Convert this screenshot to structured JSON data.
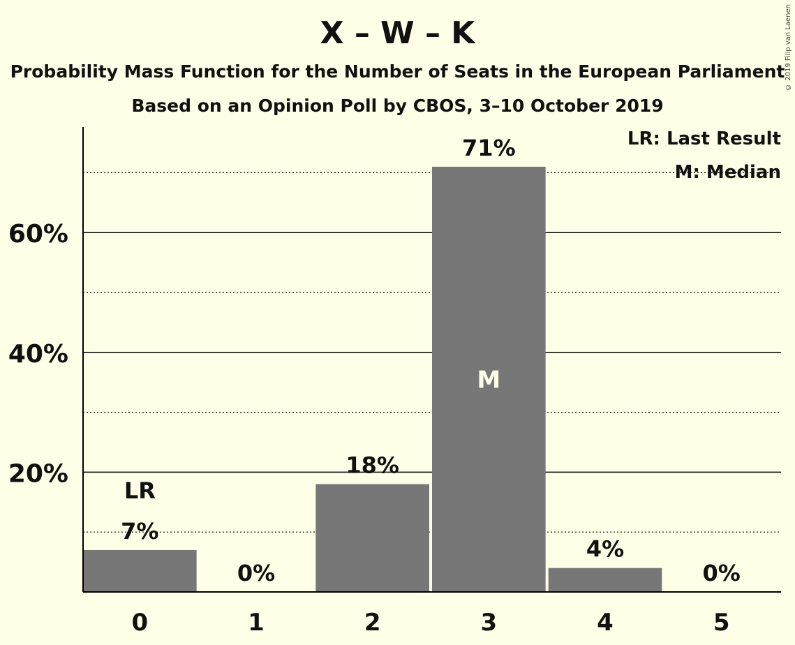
{
  "title": "X – W – K",
  "subtitle_1": "Probability Mass Function for the Number of Seats in the European Parliament",
  "subtitle_2": "Based on an Opinion Poll by CBOS, 3–10 October 2019",
  "copyright": "© 2019 Filip van Laenen",
  "legend": {
    "last_result": "LR: Last Result",
    "median": "M: Median"
  },
  "colors": {
    "background": "#FFFEE6",
    "bar": "#777777",
    "median_label": "#FFFEE6"
  },
  "chart_data": {
    "type": "bar",
    "categories": [
      "0",
      "1",
      "2",
      "3",
      "4",
      "5"
    ],
    "values": [
      7,
      0,
      18,
      71,
      4,
      0
    ],
    "value_labels": [
      "7%",
      "0%",
      "18%",
      "71%",
      "4%",
      "0%"
    ],
    "ylim": [
      0,
      77.5
    ],
    "y_major_ticks": [
      20,
      40,
      60
    ],
    "y_tick_labels": [
      "20%",
      "40%",
      "60%"
    ],
    "y_minor_gridlines": [
      10,
      30,
      50,
      70
    ],
    "last_result_index": 0,
    "last_result_label": "LR",
    "median_index": 3,
    "median_label": "M",
    "grid": true,
    "legend_position": "top-right"
  }
}
